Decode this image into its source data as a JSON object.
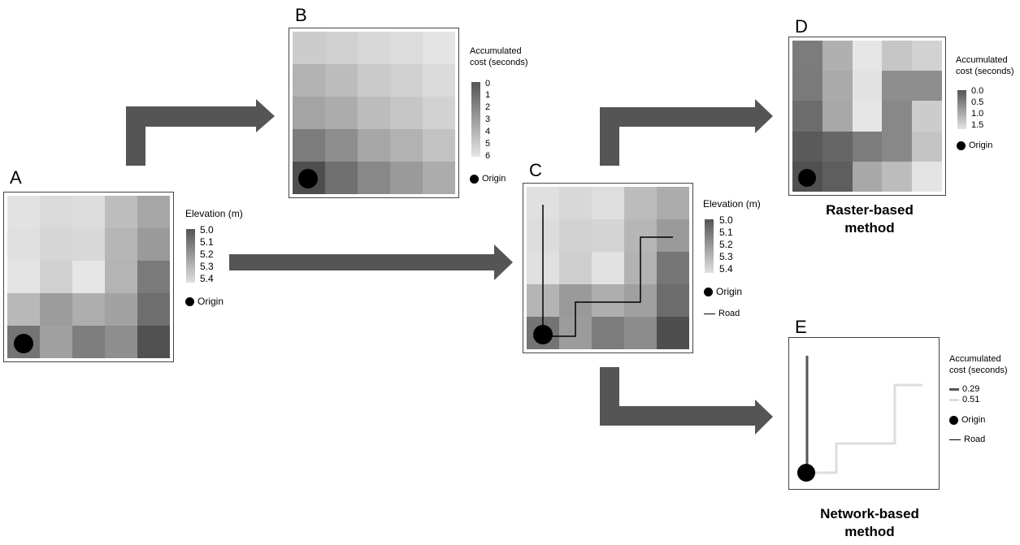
{
  "panels": {
    "A": {
      "letter": "A",
      "grid": [
        [
          "#e2e2e2",
          "#dadada",
          "#dcdcdc",
          "#bebebe",
          "#a6a6a6"
        ],
        [
          "#e0e0e0",
          "#d6d6d6",
          "#d8d8d8",
          "#b6b6b6",
          "#9a9a9a"
        ],
        [
          "#e4e4e4",
          "#d0d0d0",
          "#e6e6e6",
          "#b4b4b4",
          "#7a7a7a"
        ],
        [
          "#b8b8b8",
          "#9c9c9c",
          "#aeaeae",
          "#a2a2a2",
          "#6e6e6e"
        ],
        [
          "#747474",
          "#a0a0a0",
          "#7e7e7e",
          "#8e8e8e",
          "#505050"
        ]
      ],
      "legend_title": "Elevation (m)",
      "ticks": [
        "5.0",
        "5.1",
        "5.2",
        "5.3",
        "5.4"
      ],
      "origin_label": "Origin"
    },
    "B": {
      "letter": "B",
      "grid": [
        [
          "#cccccc",
          "#d0d0d0",
          "#d8d8d8",
          "#dcdcdc",
          "#e4e4e4"
        ],
        [
          "#b2b2b2",
          "#bcbcbc",
          "#cacaca",
          "#d0d0d0",
          "#dadada"
        ],
        [
          "#a4a4a4",
          "#acacac",
          "#bcbcbc",
          "#c6c6c6",
          "#d2d2d2"
        ],
        [
          "#7c7c7c",
          "#8e8e8e",
          "#a6a6a6",
          "#b2b2b2",
          "#c2c2c2"
        ],
        [
          "#4e4e4e",
          "#707070",
          "#888888",
          "#9a9a9a",
          "#acacac"
        ]
      ],
      "legend_title": [
        "Accumulated",
        "cost (seconds)"
      ],
      "ticks": [
        "0",
        "1",
        "2",
        "3",
        "4",
        "5",
        "6"
      ],
      "origin_label": "Origin"
    },
    "C": {
      "letter": "C",
      "grid": [
        [
          "#e0e0e0",
          "#d8d8d8",
          "#dedede",
          "#bcbcbc",
          "#acacac"
        ],
        [
          "#dcdcdc",
          "#d2d2d2",
          "#d4d4d4",
          "#b6b6b6",
          "#9a9a9a"
        ],
        [
          "#e0e0e0",
          "#cecece",
          "#e2e2e2",
          "#b2b2b2",
          "#767676"
        ],
        [
          "#b4b4b4",
          "#9a9a9a",
          "#aeaeae",
          "#a0a0a0",
          "#6c6c6c"
        ],
        [
          "#747474",
          "#9c9c9c",
          "#7c7c7c",
          "#8c8c8c",
          "#4e4e4e"
        ]
      ],
      "legend_title": "Elevation (m)",
      "ticks": [
        "5.0",
        "5.1",
        "5.2",
        "5.3",
        "5.4"
      ],
      "origin_label": "Origin",
      "road_label": "Road"
    },
    "D": {
      "letter": "D",
      "grid": [
        [
          "#7c7c7c",
          "#b0b0b0",
          "#e6e6e6",
          "#c6c6c6",
          "#d2d2d2"
        ],
        [
          "#7a7a7a",
          "#aaaaaa",
          "#e2e2e2",
          "#8e8e8e",
          "#8e8e8e"
        ],
        [
          "#6c6c6c",
          "#a8a8a8",
          "#e6e6e6",
          "#888888",
          "#cccccc"
        ],
        [
          "#5a5a5a",
          "#666666",
          "#7c7c7c",
          "#888888",
          "#c4c4c4"
        ],
        [
          "#505050",
          "#5e5e5e",
          "#a8a8a8",
          "#bcbcbc",
          "#e4e4e4"
        ]
      ],
      "legend_title": [
        "Accumulated",
        "cost (seconds)"
      ],
      "ticks": [
        "0.0",
        "0.5",
        "1.0",
        "1.5"
      ],
      "origin_label": "Origin",
      "method_label": [
        "Raster-based",
        "method"
      ]
    },
    "E": {
      "letter": "E",
      "legend_title": [
        "Accumulated",
        "cost (seconds)"
      ],
      "cost_entries": [
        "0.29",
        "0.51"
      ],
      "origin_label": "Origin",
      "road_label": "Road",
      "method_label": [
        "Network-based",
        "method"
      ]
    }
  },
  "colors": {
    "arrow": "#555555",
    "frame": "#444444",
    "cost_low": "#555555",
    "cost_high": "#dddddd"
  }
}
